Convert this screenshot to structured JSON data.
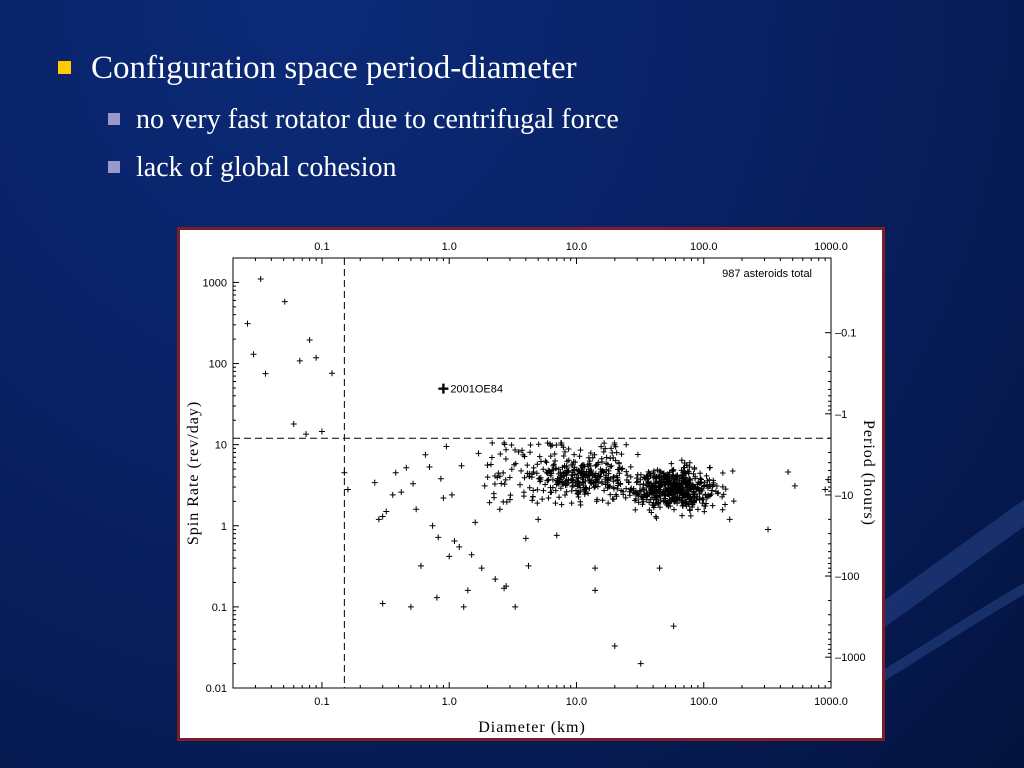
{
  "slide": {
    "bullets": [
      {
        "text": "Configuration space period-diameter",
        "level": 1
      },
      {
        "text": "no very fast rotator due to centrifugal force",
        "level": 2
      },
      {
        "text": "lack of global cohesion",
        "level": 2
      }
    ],
    "colors": {
      "background": "#0a2266",
      "bullet_level1": "#ffcc00",
      "bullet_level2": "#9999cc",
      "frame_border": "#7a1f2a"
    }
  },
  "chart_data": {
    "type": "scatter",
    "title": "",
    "xlabel": "Diameter (km)",
    "ylabel": "Spin Rate (rev/day)",
    "y2label": "Period (hours)",
    "xscale": "log",
    "yscale": "log",
    "xlim": [
      0.02,
      1000
    ],
    "ylim": [
      0.01,
      2000
    ],
    "x_ticks": [
      "0.1",
      "1.0",
      "10.0",
      "100.0",
      "1000.0"
    ],
    "x_tick_values": [
      0.1,
      1,
      10,
      100,
      1000
    ],
    "y_ticks": [
      "0.01",
      "0.1",
      "1",
      "10",
      "100",
      "1000"
    ],
    "y_tick_values": [
      0.01,
      0.1,
      1,
      10,
      100,
      1000
    ],
    "y2_ticks": [
      "0.1",
      "1",
      "10",
      "100",
      "1000"
    ],
    "y2_tick_values": [
      0.1,
      1,
      10,
      100,
      1000
    ],
    "annotation": "987 asteroids total",
    "highlight": {
      "label": "2001OE84",
      "x": 0.9,
      "y": 49
    },
    "reference_lines": {
      "vertical_x": 0.15,
      "horizontal_y": 12
    },
    "marker": "+",
    "seed": 987,
    "counts": {
      "total": 987
    },
    "series": [
      {
        "name": "",
        "points": [
          [
            0.026,
            310
          ],
          [
            0.029,
            130
          ],
          [
            0.033,
            1100
          ],
          [
            0.036,
            75
          ],
          [
            0.051,
            580
          ],
          [
            0.06,
            18
          ],
          [
            0.067,
            108
          ],
          [
            0.075,
            13.5
          ],
          [
            0.08,
            195
          ],
          [
            0.09,
            118
          ],
          [
            0.1,
            14.5
          ],
          [
            0.12,
            76
          ],
          [
            0.15,
            4.5
          ],
          [
            0.16,
            2.8
          ],
          [
            0.26,
            3.4
          ],
          [
            0.28,
            1.2
          ],
          [
            0.3,
            0.11
          ],
          [
            0.3,
            1.3
          ],
          [
            0.32,
            1.5
          ],
          [
            0.36,
            2.4
          ],
          [
            0.38,
            4.5
          ],
          [
            0.42,
            2.6
          ],
          [
            0.46,
            5.2
          ],
          [
            0.5,
            0.1
          ],
          [
            0.52,
            3.3
          ],
          [
            0.55,
            1.6
          ],
          [
            0.6,
            0.32
          ],
          [
            0.65,
            7.5
          ],
          [
            0.7,
            5.3
          ],
          [
            0.74,
            1.0
          ],
          [
            0.8,
            0.13
          ],
          [
            0.82,
            0.72
          ],
          [
            0.86,
            3.8
          ],
          [
            0.9,
            2.2
          ],
          [
            0.95,
            9.5
          ],
          [
            1.0,
            0.42
          ],
          [
            1.05,
            2.4
          ],
          [
            1.1,
            0.65
          ],
          [
            1.2,
            0.55
          ],
          [
            1.25,
            5.5
          ],
          [
            1.3,
            0.1
          ],
          [
            1.4,
            0.16
          ],
          [
            1.5,
            0.44
          ],
          [
            1.6,
            1.1
          ],
          [
            1.7,
            7.8
          ],
          [
            1.8,
            0.3
          ],
          [
            1.9,
            3.1
          ],
          [
            2.0,
            5.6
          ],
          [
            2.3,
            0.22
          ],
          [
            2.5,
            1.6
          ],
          [
            2.7,
            0.17
          ],
          [
            2.8,
            0.18
          ],
          [
            3.0,
            2.1
          ],
          [
            3.3,
            0.1
          ],
          [
            3.6,
            3.2
          ],
          [
            4.0,
            0.7
          ],
          [
            4.2,
            0.32
          ],
          [
            5.0,
            1.2
          ],
          [
            6.0,
            4.8
          ],
          [
            7.0,
            0.76
          ],
          [
            14,
            0.3
          ],
          [
            14,
            0.16
          ],
          [
            20,
            0.033
          ],
          [
            32,
            0.02
          ],
          [
            45,
            0.3
          ],
          [
            58,
            0.058
          ],
          [
            160,
            1.2
          ],
          [
            320,
            0.9
          ],
          [
            460,
            4.6
          ],
          [
            520,
            3.1
          ],
          [
            900,
            2.8
          ],
          [
            950,
            3.7
          ]
        ]
      }
    ]
  }
}
